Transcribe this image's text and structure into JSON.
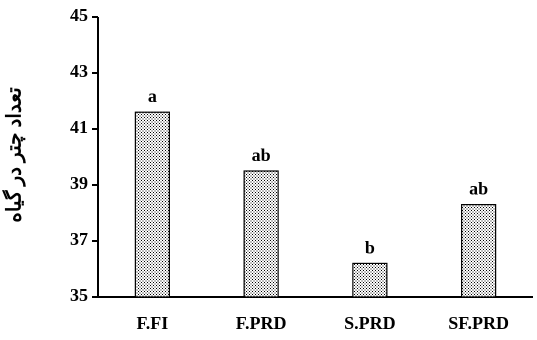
{
  "chart_data": {
    "type": "bar",
    "categories": [
      "F.FI",
      "F.PRD",
      "S.PRD",
      "SF.PRD"
    ],
    "values": [
      41.6,
      39.5,
      36.2,
      38.3
    ],
    "data_labels": [
      "a",
      "ab",
      "b",
      "ab"
    ],
    "ylabel": "تعداد چتر در گیاه",
    "ylim": [
      35,
      45
    ],
    "yticks": [
      35,
      37,
      39,
      41,
      43,
      45
    ],
    "grid": false,
    "legend": "none",
    "bar_fill": "dotted",
    "colors": {
      "bar_stroke": "#000000",
      "bar_dots": "#000000",
      "axis": "#000000"
    }
  }
}
